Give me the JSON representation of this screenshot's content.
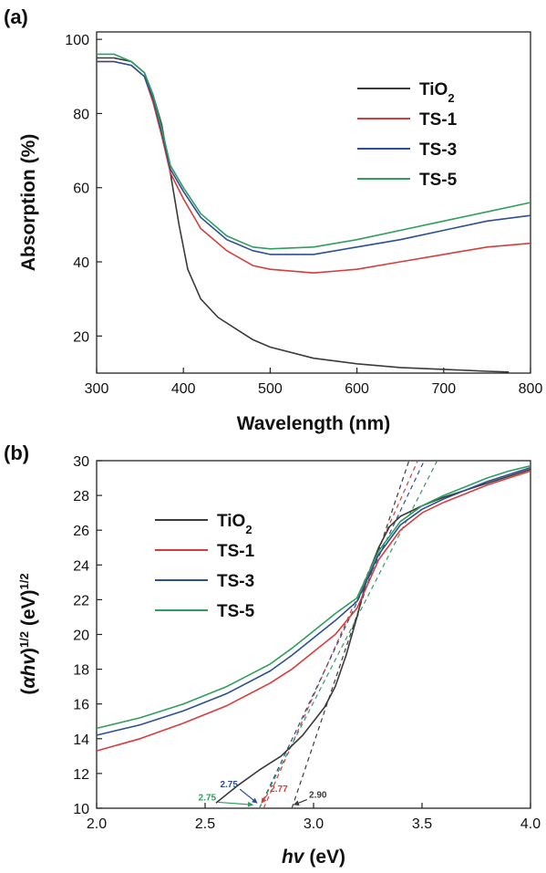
{
  "chart_data": [
    {
      "panel": "(a)",
      "type": "line",
      "xlabel": "Wavelength (nm)",
      "ylabel": "Absorption (%)",
      "xlim": [
        300,
        800
      ],
      "ylim": [
        10,
        102
      ],
      "xticks": [
        "300",
        "400",
        "500",
        "600",
        "700",
        "800"
      ],
      "yticks": [
        "20",
        "40",
        "60",
        "80",
        "100"
      ],
      "xtick_values": [
        300,
        400,
        500,
        600,
        700,
        800
      ],
      "ytick_values": [
        20,
        40,
        60,
        80,
        100
      ],
      "grid": false,
      "legend_position": "top-right",
      "series": [
        {
          "name": "TiO",
          "sub": "2",
          "color": "#3a3a3a",
          "x": [
            300,
            320,
            340,
            355,
            365,
            375,
            385,
            395,
            405,
            420,
            440,
            460,
            480,
            500,
            550,
            600,
            650,
            700,
            750,
            775
          ],
          "y": [
            95,
            95,
            94,
            91,
            85,
            77,
            64,
            50,
            38,
            30,
            25,
            22,
            19,
            17,
            14,
            12.5,
            11.5,
            11,
            10.5,
            10.3
          ]
        },
        {
          "name": "TS-1",
          "color": "#d63c3c",
          "x": [
            300,
            320,
            340,
            355,
            365,
            375,
            385,
            400,
            420,
            450,
            480,
            500,
            550,
            600,
            650,
            700,
            750,
            800
          ],
          "y": [
            94,
            94,
            93,
            90,
            83,
            74,
            64,
            57,
            49,
            43,
            39,
            38,
            37,
            38,
            40,
            42,
            44,
            45
          ]
        },
        {
          "name": "TS-3",
          "color": "#2a4f96",
          "x": [
            300,
            320,
            340,
            355,
            365,
            375,
            385,
            400,
            420,
            450,
            480,
            500,
            550,
            600,
            650,
            700,
            750,
            800
          ],
          "y": [
            94,
            94,
            93,
            90,
            84,
            75,
            65,
            59,
            52,
            46,
            43,
            42,
            42,
            44,
            46,
            48.5,
            51,
            52.5
          ]
        },
        {
          "name": "TS-5",
          "color": "#2e9e5e",
          "x": [
            300,
            320,
            340,
            355,
            365,
            375,
            385,
            400,
            420,
            450,
            480,
            500,
            550,
            600,
            650,
            700,
            750,
            800
          ],
          "y": [
            96,
            96,
            94,
            91,
            85,
            76,
            66,
            60,
            53,
            47,
            44,
            43.5,
            44,
            46,
            48.5,
            51,
            53.5,
            56
          ]
        }
      ]
    },
    {
      "panel": "(b)",
      "type": "line",
      "xlabel_italic": "hv",
      "xlabel_rest": " (eV)",
      "ylabel_parts": [
        "(",
        "αhv",
        ")",
        "1/2",
        " (eV)",
        "1/2"
      ],
      "xlim": [
        2.0,
        4.0
      ],
      "ylim": [
        10,
        30
      ],
      "xticks": [
        "2.0",
        "2.5",
        "3.0",
        "3.5",
        "4.0"
      ],
      "yticks": [
        "10",
        "12",
        "14",
        "16",
        "18",
        "20",
        "22",
        "24",
        "26",
        "28",
        "30"
      ],
      "xtick_values": [
        2.0,
        2.5,
        3.0,
        3.5,
        4.0
      ],
      "ytick_values": [
        10,
        12,
        14,
        16,
        18,
        20,
        22,
        24,
        26,
        28,
        30
      ],
      "grid": false,
      "legend_position": "top-left",
      "series": [
        {
          "name": "TiO",
          "sub": "2",
          "color": "#3a3a3a",
          "x": [
            2.55,
            2.65,
            2.75,
            2.85,
            2.95,
            3.05,
            3.1,
            3.15,
            3.2,
            3.25,
            3.3,
            3.35,
            3.4,
            3.5,
            3.6,
            3.7,
            3.8,
            3.9,
            4.0
          ],
          "y": [
            10.3,
            11.3,
            12.2,
            13.0,
            14.2,
            15.8,
            17.0,
            18.8,
            21.0,
            23.4,
            25.0,
            26.2,
            26.8,
            27.4,
            27.9,
            28.3,
            28.7,
            29.1,
            29.5
          ]
        },
        {
          "name": "TS-1",
          "color": "#d63c3c",
          "x": [
            2.0,
            2.2,
            2.4,
            2.6,
            2.8,
            2.9,
            3.0,
            3.1,
            3.2,
            3.3,
            3.4,
            3.5,
            3.6,
            3.7,
            3.8,
            3.9,
            4.0
          ],
          "y": [
            13.3,
            14.0,
            14.9,
            15.9,
            17.2,
            18.0,
            19.0,
            20.0,
            21.5,
            24.3,
            26.0,
            27.0,
            27.6,
            28.1,
            28.6,
            29.0,
            29.4
          ]
        },
        {
          "name": "TS-3",
          "color": "#2a4f96",
          "x": [
            2.0,
            2.2,
            2.4,
            2.6,
            2.8,
            2.9,
            3.0,
            3.1,
            3.2,
            3.3,
            3.4,
            3.5,
            3.6,
            3.7,
            3.8,
            3.9,
            4.0
          ],
          "y": [
            14.2,
            14.8,
            15.6,
            16.6,
            17.9,
            18.8,
            19.8,
            20.8,
            21.9,
            24.6,
            26.3,
            27.2,
            27.8,
            28.3,
            28.8,
            29.2,
            29.6
          ]
        },
        {
          "name": "TS-5",
          "color": "#2e9e5e",
          "x": [
            2.0,
            2.2,
            2.4,
            2.6,
            2.8,
            2.9,
            3.0,
            3.1,
            3.2,
            3.3,
            3.4,
            3.5,
            3.6,
            3.7,
            3.8,
            3.9,
            4.0
          ],
          "y": [
            14.6,
            15.2,
            16.0,
            17.0,
            18.3,
            19.2,
            20.2,
            21.2,
            22.1,
            24.8,
            26.5,
            27.4,
            28.0,
            28.5,
            29.0,
            29.4,
            29.7
          ]
        }
      ],
      "tangents": [
        {
          "color": "#3a3a3a",
          "x": [
            2.9,
            3.44
          ],
          "y": [
            10,
            30
          ]
        },
        {
          "color": "#d63c3c",
          "x": [
            2.77,
            3.48
          ],
          "y": [
            10,
            30
          ]
        },
        {
          "color": "#2a4f96",
          "x": [
            2.75,
            3.51
          ],
          "y": [
            10,
            30
          ]
        },
        {
          "color": "#2e9e5e",
          "x": [
            2.75,
            3.57
          ],
          "y": [
            10,
            30
          ]
        }
      ],
      "annotations": [
        {
          "text": "2.75",
          "color": "#2a4f96",
          "at": [
            2.61,
            11.2
          ],
          "arrow_to": [
            2.74,
            10.3
          ]
        },
        {
          "text": "2.77",
          "color": "#d63c3c",
          "at": [
            2.84,
            10.95
          ],
          "arrow_to": [
            2.76,
            10.3
          ]
        },
        {
          "text": "2.90",
          "color": "#3a3a3a",
          "at": [
            3.02,
            10.6
          ],
          "arrow_to": [
            2.91,
            10.2
          ]
        },
        {
          "text": "2.75",
          "color": "#2e9e5e",
          "at": [
            2.51,
            10.45
          ],
          "arrow_to": [
            2.72,
            10.2
          ]
        }
      ]
    }
  ]
}
